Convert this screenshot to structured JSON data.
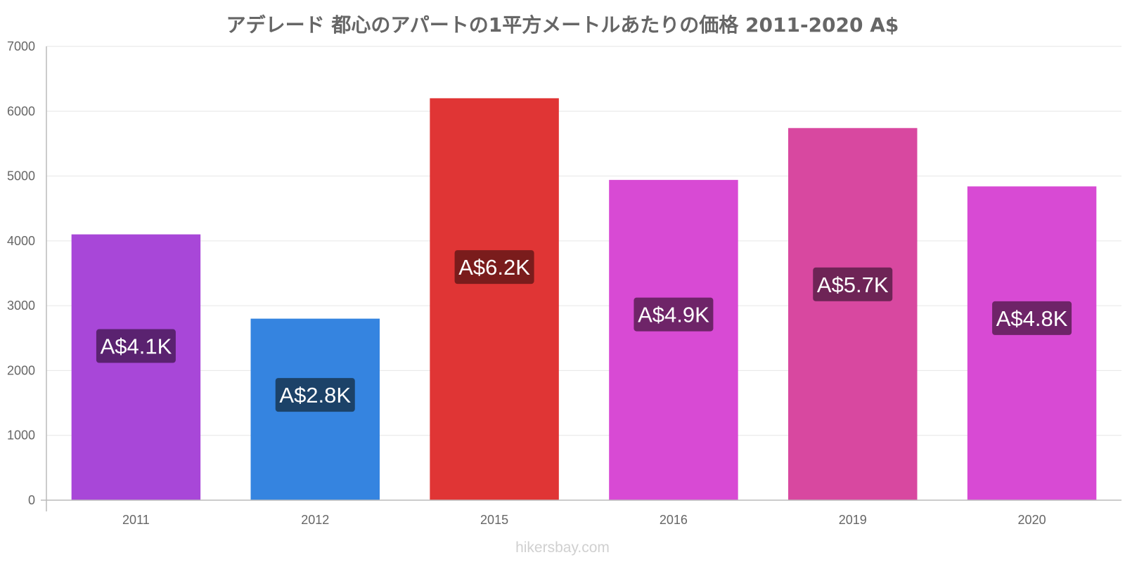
{
  "chart_data": {
    "type": "bar",
    "title": "アデレード 都心のアパートの1平方メートルあたりの価格 2011-2020 A$",
    "xlabel": "",
    "ylabel": "",
    "categories": [
      "2011",
      "2012",
      "2015",
      "2016",
      "2019",
      "2020"
    ],
    "values": [
      4100,
      2800,
      6200,
      4940,
      5740,
      4840
    ],
    "data_labels": [
      "A$4.1K",
      "A$2.8K",
      "A$6.2K",
      "A$4.9K",
      "A$5.7K",
      "A$4.8K"
    ],
    "bar_colors": [
      "#a847d8",
      "#3584e0",
      "#e03535",
      "#d84ad4",
      "#d848a0",
      "#d84ad4"
    ],
    "label_bg_colors": [
      "#5a2270",
      "#1c4268",
      "#7a1c1c",
      "#6e2468",
      "#6e2456",
      "#6e2468"
    ],
    "ylim": [
      0,
      7000
    ],
    "yticks": [
      0,
      1000,
      2000,
      3000,
      4000,
      5000,
      6000,
      7000
    ],
    "grid": true,
    "legend": "none"
  },
  "watermark": "hikersbay.com"
}
